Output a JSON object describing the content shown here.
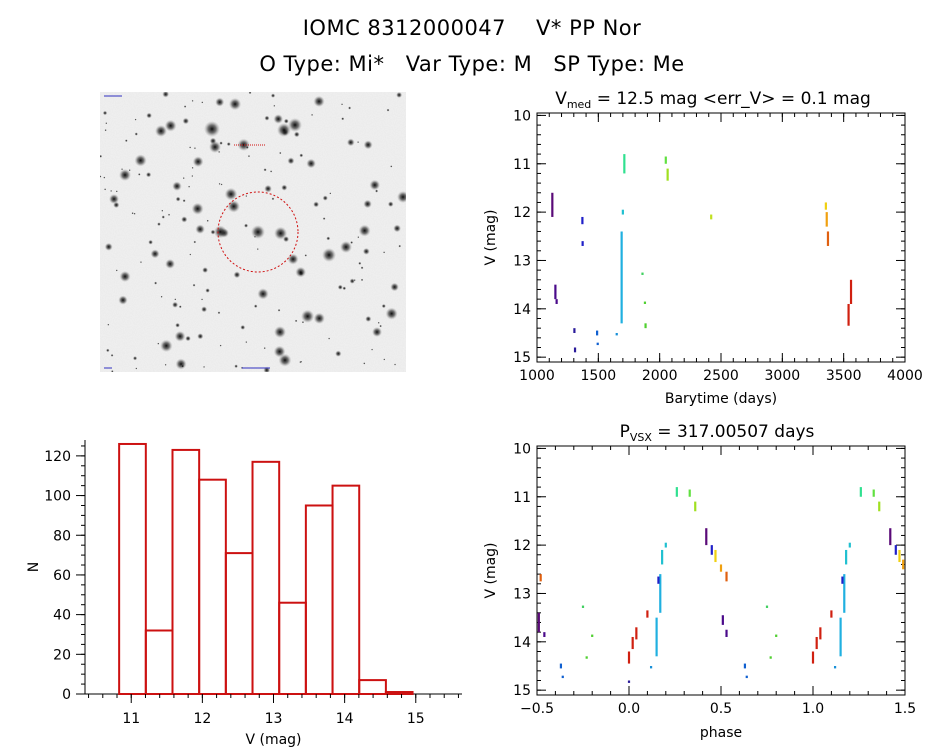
{
  "header": {
    "star_id": "IOMC 8312000047",
    "star_name": "V* PP Nor",
    "o_type_label": "O Type:",
    "o_type": "Mi*",
    "var_type_label": "Var Type:",
    "var_type": "M",
    "sp_type_label": "SP Type:",
    "sp_type": "Me"
  },
  "chart_data": [
    {
      "type": "scatter",
      "title_main": "V",
      "title_sub": "med",
      "title_rest": "= 12.5 mag <err_V> = 0.1 mag",
      "xlabel": "Barytime (days)",
      "ylabel": "V (mag)",
      "xlim": [
        1000,
        4000
      ],
      "ylim": [
        15.1,
        9.95
      ],
      "y_inverted": true,
      "xticks": [
        "1000",
        "1500",
        "2000",
        "2500",
        "3000",
        "3500",
        "4000"
      ],
      "yticks": [
        "10",
        "11",
        "12",
        "13",
        "14",
        "15"
      ],
      "segments": [
        {
          "x": 1125,
          "y1": 11.6,
          "y2": 12.1,
          "color": "#5a0a78"
        },
        {
          "x": 1150,
          "y1": 13.5,
          "y2": 13.8,
          "color": "#4a0a8a"
        },
        {
          "x": 1160,
          "y1": 13.8,
          "y2": 13.9,
          "color": "#4a0a8a"
        },
        {
          "x": 1305,
          "y1": 14.4,
          "y2": 14.5,
          "color": "#2a1a9a"
        },
        {
          "x": 1310,
          "y1": 14.8,
          "y2": 14.9,
          "color": "#2a1a9a"
        },
        {
          "x": 1370,
          "y1": 12.1,
          "y2": 12.25,
          "color": "#2020c8"
        },
        {
          "x": 1372,
          "y1": 12.6,
          "y2": 12.7,
          "color": "#2020c8"
        },
        {
          "x": 1490,
          "y1": 14.45,
          "y2": 14.55,
          "color": "#1060d0"
        },
        {
          "x": 1495,
          "y1": 14.7,
          "y2": 14.75,
          "color": "#1060d0"
        },
        {
          "x": 1650,
          "y1": 14.5,
          "y2": 14.55,
          "color": "#1890d8"
        },
        {
          "x": 1690,
          "y1": 12.4,
          "y2": 14.3,
          "color": "#20b0e0"
        },
        {
          "x": 1700,
          "y1": 11.95,
          "y2": 12.05,
          "color": "#20c0d0"
        },
        {
          "x": 1712,
          "y1": 10.8,
          "y2": 11.2,
          "color": "#30e090"
        },
        {
          "x": 1860,
          "y1": 13.25,
          "y2": 13.3,
          "color": "#40d060"
        },
        {
          "x": 1880,
          "y1": 13.85,
          "y2": 13.9,
          "color": "#50d030"
        },
        {
          "x": 1885,
          "y1": 14.3,
          "y2": 14.4,
          "color": "#50d030"
        },
        {
          "x": 2050,
          "y1": 10.85,
          "y2": 11.0,
          "color": "#60e040"
        },
        {
          "x": 2065,
          "y1": 11.1,
          "y2": 11.35,
          "color": "#a0e020"
        },
        {
          "x": 2420,
          "y1": 12.05,
          "y2": 12.15,
          "color": "#c0e020"
        },
        {
          "x": 3355,
          "y1": 11.8,
          "y2": 11.95,
          "color": "#f0d010"
        },
        {
          "x": 3362,
          "y1": 12.0,
          "y2": 12.3,
          "color": "#f0a010"
        },
        {
          "x": 3372,
          "y1": 12.4,
          "y2": 12.7,
          "color": "#e06010"
        },
        {
          "x": 3540,
          "y1": 13.9,
          "y2": 14.35,
          "color": "#d02010"
        },
        {
          "x": 3560,
          "y1": 13.4,
          "y2": 13.9,
          "color": "#d02010"
        }
      ]
    },
    {
      "type": "bar",
      "xlabel": "V (mag)",
      "ylabel": "N",
      "xlim": [
        10.35,
        15.65
      ],
      "ylim": [
        0,
        128
      ],
      "xticks": [
        "11",
        "12",
        "13",
        "14",
        "15"
      ],
      "yticks": [
        "0",
        "20",
        "40",
        "60",
        "80",
        "100",
        "120"
      ],
      "bin_width": 0.375,
      "bin_start": 10.83,
      "values": [
        126,
        32,
        123,
        108,
        71,
        117,
        46,
        95,
        105,
        7,
        1
      ],
      "color": "#cc1111"
    },
    {
      "type": "scatter",
      "title_main": "P",
      "title_sub": "VSX",
      "title_rest": "= 317.00507 days",
      "xlabel": "phase",
      "ylabel": "V (mag)",
      "xlim": [
        -0.5,
        1.5
      ],
      "ylim": [
        15.1,
        9.95
      ],
      "y_inverted": true,
      "xticks": [
        "−0.5",
        "0.0",
        "0.5",
        "1.0",
        "1.5"
      ],
      "yticks": [
        "10",
        "11",
        "12",
        "13",
        "14",
        "15"
      ],
      "segments": [
        {
          "x": -0.48,
          "y1": 12.6,
          "y2": 12.75,
          "color": "#e06010"
        },
        {
          "x": -0.49,
          "y1": 13.4,
          "y2": 13.8,
          "color": "#5a0a78"
        },
        {
          "x": -0.46,
          "y1": 13.8,
          "y2": 13.9,
          "color": "#4a0a8a"
        },
        {
          "x": -0.37,
          "y1": 14.45,
          "y2": 14.55,
          "color": "#1060d0"
        },
        {
          "x": -0.36,
          "y1": 14.7,
          "y2": 14.75,
          "color": "#1060d0"
        },
        {
          "x": -0.25,
          "y1": 13.25,
          "y2": 13.3,
          "color": "#40d060"
        },
        {
          "x": -0.2,
          "y1": 13.85,
          "y2": 13.9,
          "color": "#50d030"
        },
        {
          "x": -0.23,
          "y1": 14.3,
          "y2": 14.35,
          "color": "#50d030"
        },
        {
          "x": 0.0,
          "y1": 14.2,
          "y2": 14.45,
          "color": "#d02010"
        },
        {
          "x": 0.02,
          "y1": 13.9,
          "y2": 14.15,
          "color": "#d02010"
        },
        {
          "x": 0.04,
          "y1": 13.7,
          "y2": 13.95,
          "color": "#d02010"
        },
        {
          "x": 0.1,
          "y1": 13.35,
          "y2": 13.5,
          "color": "#d02010"
        },
        {
          "x": 0.0,
          "y1": 14.8,
          "y2": 14.85,
          "color": "#2a1a9a"
        },
        {
          "x": 0.12,
          "y1": 14.5,
          "y2": 14.55,
          "color": "#1890d8"
        },
        {
          "x": 0.15,
          "y1": 13.5,
          "y2": 14.3,
          "color": "#20b0e0"
        },
        {
          "x": 0.17,
          "y1": 12.6,
          "y2": 13.4,
          "color": "#20b0e0"
        },
        {
          "x": 0.16,
          "y1": 12.65,
          "y2": 12.8,
          "color": "#2020c8"
        },
        {
          "x": 0.18,
          "y1": 12.1,
          "y2": 12.4,
          "color": "#20c0d0"
        },
        {
          "x": 0.2,
          "y1": 11.95,
          "y2": 12.05,
          "color": "#20c0d0"
        },
        {
          "x": 0.26,
          "y1": 10.8,
          "y2": 11.0,
          "color": "#30e090"
        },
        {
          "x": 0.33,
          "y1": 10.85,
          "y2": 11.0,
          "color": "#60e040"
        },
        {
          "x": 0.36,
          "y1": 11.1,
          "y2": 11.3,
          "color": "#a0e020"
        },
        {
          "x": 0.42,
          "y1": 11.65,
          "y2": 12.0,
          "color": "#5a0a78"
        },
        {
          "x": 0.45,
          "y1": 12.0,
          "y2": 12.2,
          "color": "#2020c8"
        },
        {
          "x": 0.47,
          "y1": 12.1,
          "y2": 12.35,
          "color": "#f0d010"
        },
        {
          "x": 0.5,
          "y1": 12.4,
          "y2": 12.55,
          "color": "#f0a010"
        },
        {
          "x": 0.53,
          "y1": 12.55,
          "y2": 12.75,
          "color": "#e06010"
        },
        {
          "x": 0.51,
          "y1": 13.45,
          "y2": 13.65,
          "color": "#4a0a8a"
        },
        {
          "x": 0.53,
          "y1": 13.75,
          "y2": 13.9,
          "color": "#4a0a8a"
        },
        {
          "x": 0.63,
          "y1": 14.45,
          "y2": 14.55,
          "color": "#1060d0"
        },
        {
          "x": 0.64,
          "y1": 14.7,
          "y2": 14.75,
          "color": "#1060d0"
        },
        {
          "x": 0.75,
          "y1": 13.25,
          "y2": 13.3,
          "color": "#40d060"
        },
        {
          "x": 0.8,
          "y1": 13.85,
          "y2": 13.9,
          "color": "#50d030"
        },
        {
          "x": 0.77,
          "y1": 14.3,
          "y2": 14.35,
          "color": "#50d030"
        },
        {
          "x": 1.0,
          "y1": 14.2,
          "y2": 14.45,
          "color": "#d02010"
        },
        {
          "x": 1.02,
          "y1": 13.9,
          "y2": 14.15,
          "color": "#d02010"
        },
        {
          "x": 1.04,
          "y1": 13.7,
          "y2": 13.95,
          "color": "#d02010"
        },
        {
          "x": 1.1,
          "y1": 13.35,
          "y2": 13.5,
          "color": "#d02010"
        },
        {
          "x": 1.12,
          "y1": 14.5,
          "y2": 14.55,
          "color": "#1890d8"
        },
        {
          "x": 1.15,
          "y1": 13.5,
          "y2": 14.3,
          "color": "#20b0e0"
        },
        {
          "x": 1.17,
          "y1": 12.6,
          "y2": 13.4,
          "color": "#20b0e0"
        },
        {
          "x": 1.16,
          "y1": 12.65,
          "y2": 12.8,
          "color": "#2020c8"
        },
        {
          "x": 1.18,
          "y1": 12.1,
          "y2": 12.4,
          "color": "#20c0d0"
        },
        {
          "x": 1.2,
          "y1": 11.95,
          "y2": 12.05,
          "color": "#20c0d0"
        },
        {
          "x": 1.26,
          "y1": 10.8,
          "y2": 11.0,
          "color": "#30e090"
        },
        {
          "x": 1.33,
          "y1": 10.85,
          "y2": 11.0,
          "color": "#60e040"
        },
        {
          "x": 1.36,
          "y1": 11.1,
          "y2": 11.3,
          "color": "#a0e020"
        },
        {
          "x": 1.42,
          "y1": 11.65,
          "y2": 12.0,
          "color": "#5a0a78"
        },
        {
          "x": 1.45,
          "y1": 12.0,
          "y2": 12.2,
          "color": "#2020c8"
        },
        {
          "x": 1.47,
          "y1": 12.1,
          "y2": 12.35,
          "color": "#f0d010"
        },
        {
          "x": 1.49,
          "y1": 12.3,
          "y2": 12.5,
          "color": "#f0a010"
        }
      ]
    }
  ]
}
